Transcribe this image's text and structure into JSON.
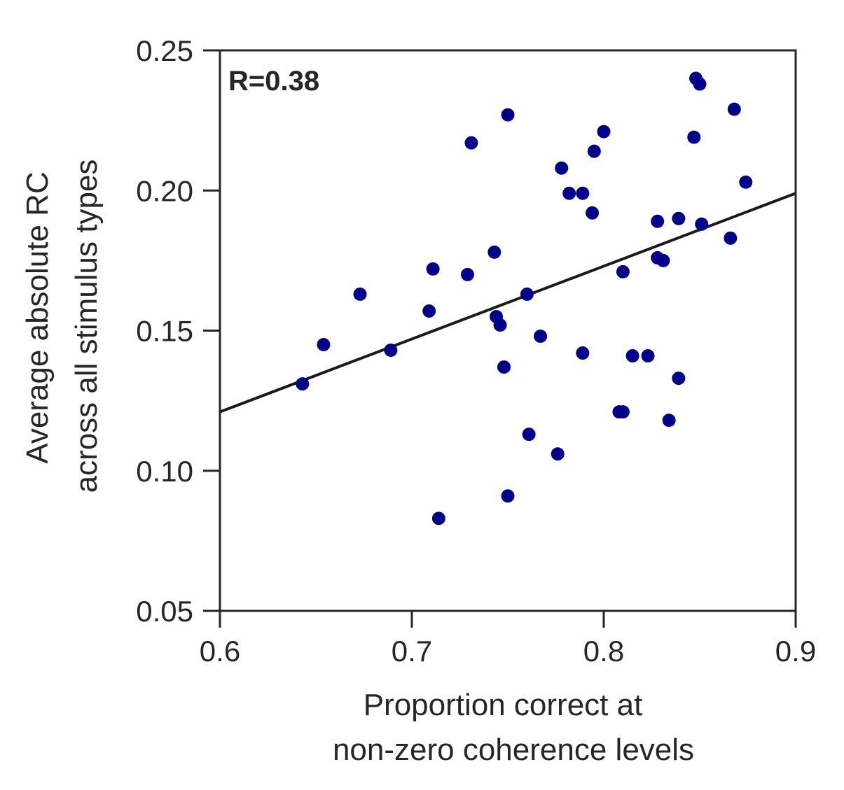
{
  "chart_data": {
    "type": "scatter",
    "annotation": "R=0.38",
    "xlabel": [
      "Proportion correct at",
      "non-zero coherence levels"
    ],
    "ylabel": [
      "Average absolute RC",
      "across all stimulus types"
    ],
    "xlim": [
      0.6,
      0.9
    ],
    "ylim": [
      0.05,
      0.25
    ],
    "xticks": [
      0.6,
      0.7,
      0.8,
      0.9
    ],
    "xtick_labels": [
      "0.6",
      "0.7",
      "0.8",
      "0.9"
    ],
    "yticks": [
      0.05,
      0.1,
      0.15,
      0.2,
      0.25
    ],
    "ytick_labels": [
      "0.05",
      "0.10",
      "0.15",
      "0.20",
      "0.25"
    ],
    "grid": false,
    "colors": {
      "points": "#00008b",
      "fit_line": "#1a1a1a",
      "axes": "#262626"
    },
    "points": {
      "x": [
        0.643,
        0.654,
        0.673,
        0.689,
        0.709,
        0.711,
        0.714,
        0.729,
        0.731,
        0.743,
        0.744,
        0.746,
        0.748,
        0.75,
        0.75,
        0.76,
        0.761,
        0.767,
        0.776,
        0.778,
        0.782,
        0.789,
        0.789,
        0.794,
        0.795,
        0.8,
        0.808,
        0.81,
        0.81,
        0.815,
        0.823,
        0.828,
        0.828,
        0.831,
        0.834,
        0.839,
        0.839,
        0.847,
        0.848,
        0.85,
        0.851,
        0.866,
        0.868,
        0.874
      ],
      "y": [
        0.131,
        0.145,
        0.163,
        0.143,
        0.157,
        0.172,
        0.083,
        0.17,
        0.217,
        0.178,
        0.155,
        0.152,
        0.137,
        0.227,
        0.091,
        0.163,
        0.113,
        0.148,
        0.106,
        0.208,
        0.199,
        0.199,
        0.142,
        0.192,
        0.214,
        0.221,
        0.121,
        0.121,
        0.171,
        0.141,
        0.141,
        0.176,
        0.189,
        0.175,
        0.118,
        0.133,
        0.19,
        0.219,
        0.24,
        0.238,
        0.188,
        0.183,
        0.229,
        0.203
      ]
    },
    "fit_line": {
      "x": [
        0.6,
        0.9
      ],
      "y": [
        0.121,
        0.199
      ]
    }
  }
}
